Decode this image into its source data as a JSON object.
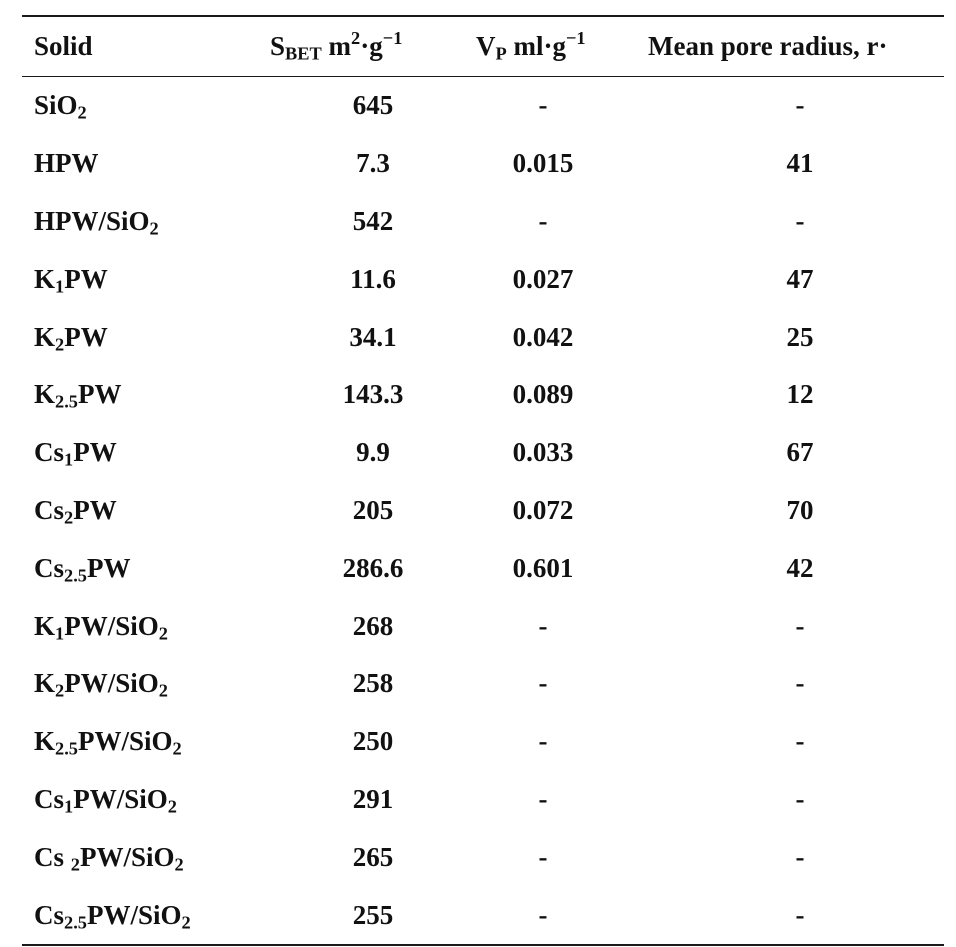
{
  "table": {
    "headers": {
      "solid": "Solid",
      "sbet_main": "S",
      "sbet_sub": "BET",
      "sbet_unit_pre": " m",
      "sbet_unit_sup": "2",
      "sbet_unit_mid": "·g",
      "sbet_unit_sup2": "−1",
      "vp_main": "V",
      "vp_sub": "P",
      "vp_unit_pre": " ml·g",
      "vp_unit_sup": "−1",
      "radius": "Mean pore radius, r·"
    },
    "rows": [
      {
        "solid_main": "SiO",
        "solid_sub1": "2",
        "solid_tail": "",
        "solid_sub2": "",
        "sbet": "645",
        "vp": "-",
        "radius": "-"
      },
      {
        "solid_main": "HPW",
        "solid_sub1": "",
        "solid_tail": "",
        "solid_sub2": "",
        "sbet": "7.3",
        "vp": "0.015",
        "radius": "41"
      },
      {
        "solid_main": "HPW/SiO",
        "solid_sub1": "2",
        "solid_tail": "",
        "solid_sub2": "",
        "sbet": "542",
        "vp": "-",
        "radius": "-"
      },
      {
        "solid_main": "K",
        "solid_sub1": "1",
        "solid_tail": "PW",
        "solid_sub2": "",
        "sbet": "11.6",
        "vp": "0.027",
        "radius": "47"
      },
      {
        "solid_main": "K",
        "solid_sub1": "2",
        "solid_tail": "PW",
        "solid_sub2": "",
        "sbet": "34.1",
        "vp": "0.042",
        "radius": "25"
      },
      {
        "solid_main": "K",
        "solid_sub1": "2.5",
        "solid_tail": "PW",
        "solid_sub2": "",
        "sbet": "143.3",
        "vp": "0.089",
        "radius": "12"
      },
      {
        "solid_main": "Cs",
        "solid_sub1": "1",
        "solid_tail": "PW",
        "solid_sub2": "",
        "sbet": "9.9",
        "vp": "0.033",
        "radius": "67"
      },
      {
        "solid_main": "Cs",
        "solid_sub1": "2",
        "solid_tail": "PW",
        "solid_sub2": "",
        "sbet": "205",
        "vp": "0.072",
        "radius": "70"
      },
      {
        "solid_main": "Cs",
        "solid_sub1": "2.5",
        "solid_tail": "PW",
        "solid_sub2": "",
        "sbet": "286.6",
        "vp": "0.601",
        "radius": "42"
      },
      {
        "solid_main": "K",
        "solid_sub1": "1",
        "solid_tail": "PW/SiO",
        "solid_sub2": "2",
        "sbet": "268",
        "vp": "-",
        "radius": "-"
      },
      {
        "solid_main": "K",
        "solid_sub1": "2",
        "solid_tail": "PW/SiO",
        "solid_sub2": "2",
        "sbet": "258",
        "vp": "-",
        "radius": "-"
      },
      {
        "solid_main": "K",
        "solid_sub1": "2.5",
        "solid_tail": "PW/SiO",
        "solid_sub2": "2",
        "sbet": "250",
        "vp": "-",
        "radius": "-"
      },
      {
        "solid_main": "Cs",
        "solid_sub1": "1",
        "solid_tail": "PW/SiO",
        "solid_sub2": "2",
        "sbet": "291",
        "vp": "-",
        "radius": "-"
      },
      {
        "solid_main": "Cs ",
        "solid_sub1": "2",
        "solid_tail": "PW/SiO",
        "solid_sub2": "2",
        "sbet": "265",
        "vp": "-",
        "radius": "-"
      },
      {
        "solid_main": "Cs",
        "solid_sub1": "2.5",
        "solid_tail": "PW/SiO",
        "solid_sub2": "2",
        "sbet": "255",
        "vp": "-",
        "radius": "-"
      }
    ]
  }
}
